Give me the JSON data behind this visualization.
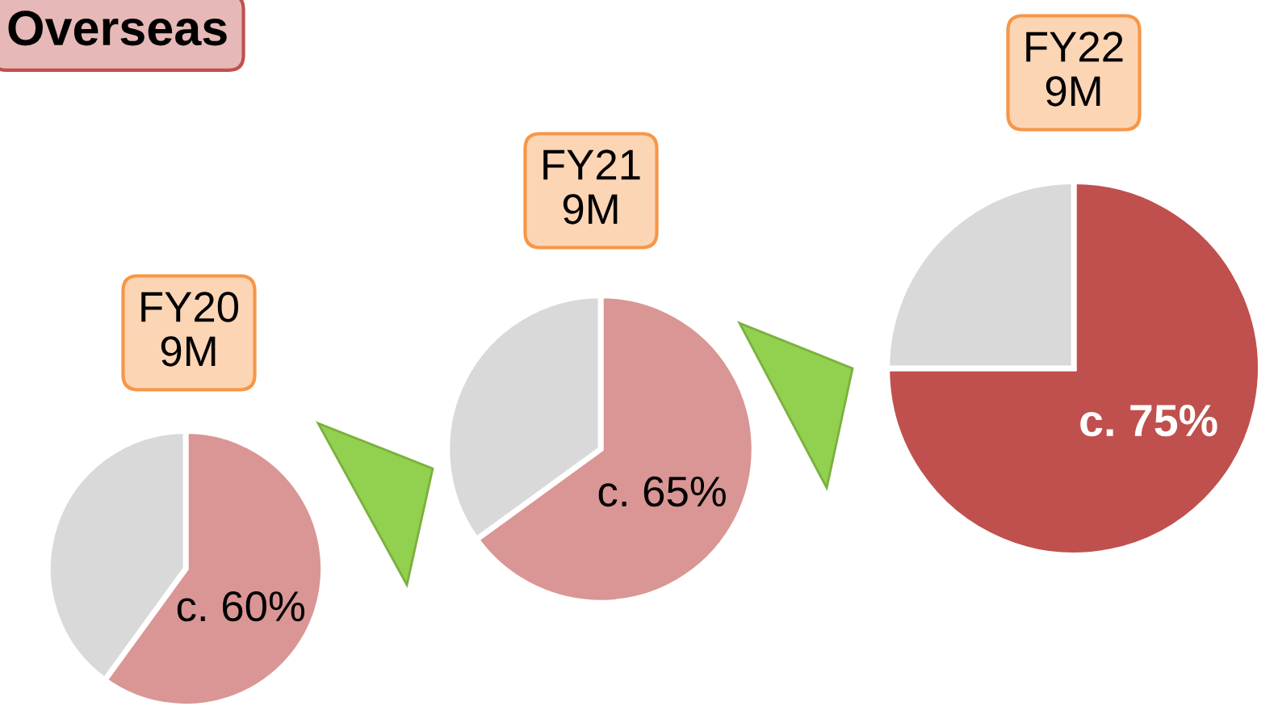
{
  "chart_data": [
    {
      "type": "pie",
      "title": "FY20\n9M",
      "annotations": [
        "Overseas"
      ],
      "categories": [
        null,
        null
      ],
      "values": [
        60,
        40
      ],
      "colors": [
        "#d99694",
        "#d9d9d9"
      ],
      "value_labels": [
        "c. 60%",
        null
      ]
    },
    {
      "type": "pie",
      "title": "FY21\n9M",
      "categories": [
        null,
        null
      ],
      "values": [
        65,
        35
      ],
      "colors": [
        "#d99694",
        "#d9d9d9"
      ],
      "value_labels": [
        "c. 65%",
        null
      ]
    },
    {
      "type": "pie",
      "title": "FY22\n9M",
      "categories": [
        null,
        null
      ],
      "values": [
        75,
        25
      ],
      "colors": [
        "#c0504d",
        "#d9d9d9"
      ],
      "value_labels": [
        "c. 75%",
        null
      ]
    }
  ]
}
